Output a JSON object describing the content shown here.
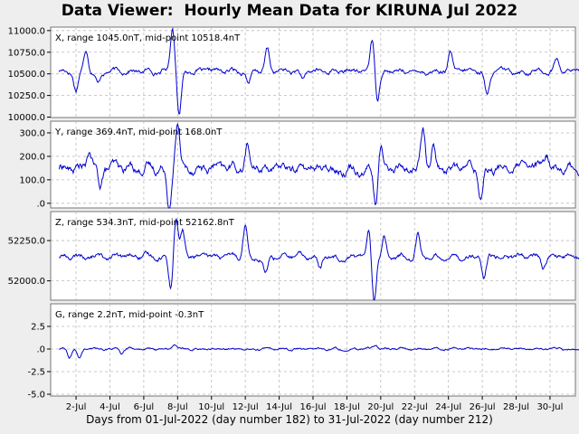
{
  "title": "Data Viewer:  Hourly Mean Data for KIRUNA Jul 2022",
  "xlabel": "Days from 01-Jul-2022 (day number 182) to 31-Jul-2022 (day number 212)",
  "colors": {
    "line": "#0000cc",
    "grid": "#bbbbbb",
    "panel_bg": "#ffffff",
    "page_bg": "#eeeeee"
  },
  "chart_data": [
    {
      "type": "line",
      "component": "X",
      "label": "X, range 1045.0nT, mid-point 10518.4nT",
      "yticks": [
        10000,
        10250,
        10500,
        10750,
        11000
      ],
      "ytick_labels": [
        "10000.0",
        "10250.0",
        "10500.0",
        "10750.0",
        "11000.0"
      ],
      "ylim": [
        9995,
        11040
      ],
      "baseline": 10530,
      "noise": 45,
      "events": [
        {
          "t": 2.0,
          "dy": -220
        },
        {
          "t": 2.6,
          "dy": 260
        },
        {
          "t": 3.3,
          "dy": -150
        },
        {
          "t": 7.7,
          "dy": 520
        },
        {
          "t": 8.1,
          "dy": -480
        },
        {
          "t": 12.2,
          "dy": -140
        },
        {
          "t": 13.3,
          "dy": 250
        },
        {
          "t": 15.4,
          "dy": -120
        },
        {
          "t": 19.5,
          "dy": 380
        },
        {
          "t": 19.8,
          "dy": -320
        },
        {
          "t": 24.1,
          "dy": 200
        },
        {
          "t": 26.3,
          "dy": -300
        },
        {
          "t": 30.4,
          "dy": 150
        }
      ]
    },
    {
      "type": "line",
      "component": "Y",
      "label": "Y, range 369.4nT, mid-point 168.0nT",
      "yticks": [
        0,
        100,
        200,
        300
      ],
      "ytick_labels": [
        ".0",
        "100.0",
        "200.0",
        "300.0"
      ],
      "ylim": [
        -20,
        350
      ],
      "baseline": 150,
      "noise": 32,
      "events": [
        {
          "t": 2.8,
          "dy": 70
        },
        {
          "t": 3.4,
          "dy": -80
        },
        {
          "t": 7.5,
          "dy": -160
        },
        {
          "t": 8.0,
          "dy": 190
        },
        {
          "t": 12.1,
          "dy": 90
        },
        {
          "t": 19.7,
          "dy": -150
        },
        {
          "t": 20.0,
          "dy": 90
        },
        {
          "t": 22.5,
          "dy": 160
        },
        {
          "t": 23.1,
          "dy": 100
        },
        {
          "t": 25.9,
          "dy": -120
        },
        {
          "t": 29.8,
          "dy": 60
        }
      ]
    },
    {
      "type": "line",
      "component": "Z",
      "label": "Z, range 534.3nT, mid-point 52162.8nT",
      "yticks": [
        52000,
        52250
      ],
      "ytick_labels": [
        "52000.0",
        "52250.0"
      ],
      "ylim": [
        51880,
        52430
      ],
      "baseline": 52150,
      "noise": 26,
      "events": [
        {
          "t": 7.6,
          "dy": -190
        },
        {
          "t": 7.9,
          "dy": 250
        },
        {
          "t": 8.3,
          "dy": 150
        },
        {
          "t": 12.0,
          "dy": 200
        },
        {
          "t": 13.2,
          "dy": -110
        },
        {
          "t": 16.4,
          "dy": -80
        },
        {
          "t": 19.3,
          "dy": 180
        },
        {
          "t": 19.6,
          "dy": -270
        },
        {
          "t": 20.2,
          "dy": 130
        },
        {
          "t": 22.2,
          "dy": 140
        },
        {
          "t": 26.1,
          "dy": -150
        },
        {
          "t": 29.6,
          "dy": -70
        }
      ]
    },
    {
      "type": "line",
      "component": "G",
      "label": "G, range 2.2nT, mid-point -0.3nT",
      "yticks": [
        -5,
        -2.5,
        0,
        2.5
      ],
      "ytick_labels": [
        "-5.0",
        "-2.5",
        ".0",
        "2.5"
      ],
      "ylim": [
        -5.2,
        5.0
      ],
      "baseline": 0,
      "noise": 0.2,
      "events": [
        {
          "t": 1.6,
          "dy": -1.0
        },
        {
          "t": 2.2,
          "dy": -1.1
        },
        {
          "t": 4.7,
          "dy": -0.6
        },
        {
          "t": 7.8,
          "dy": 0.6
        },
        {
          "t": 19.7,
          "dy": 0.5
        },
        {
          "t": 30.6,
          "dy": 0.3
        }
      ]
    }
  ],
  "xaxis": {
    "xlim": [
      0.5,
      31.5
    ],
    "ticks": [
      2,
      4,
      6,
      8,
      10,
      12,
      14,
      16,
      18,
      20,
      22,
      24,
      26,
      28,
      30
    ],
    "tick_labels": [
      "2-Jul",
      "4-Jul",
      "6-Jul",
      "8-Jul",
      "10-Jul",
      "12-Jul",
      "14-Jul",
      "16-Jul",
      "18-Jul",
      "20-Jul",
      "22-Jul",
      "24-Jul",
      "26-Jul",
      "28-Jul",
      "30-Jul"
    ]
  },
  "grid": true
}
